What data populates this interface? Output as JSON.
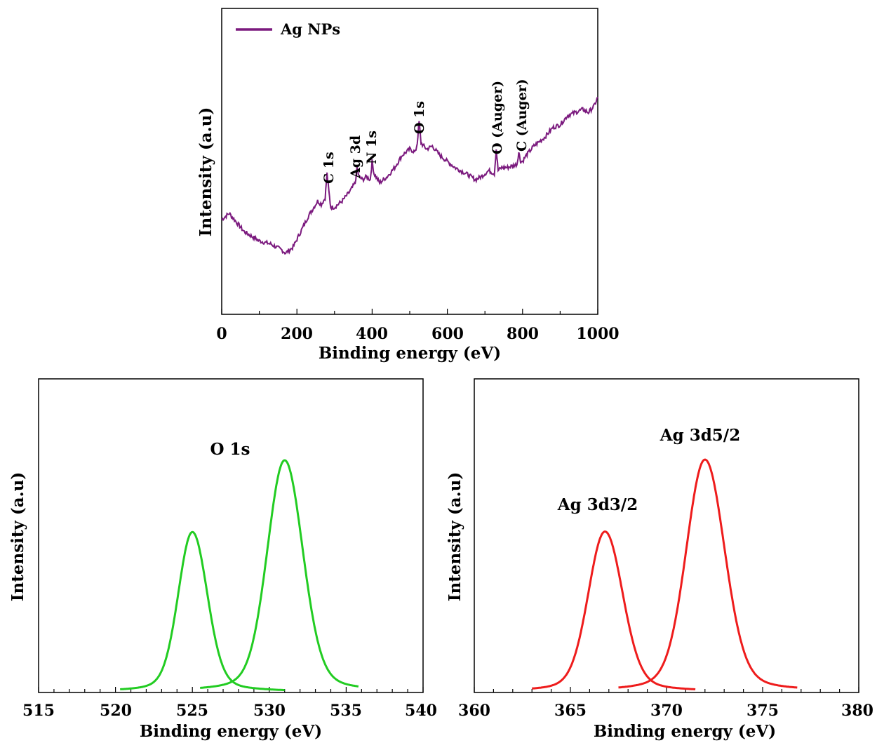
{
  "chart_data": [
    {
      "id": "survey",
      "type": "line",
      "xlabel": "Binding energy (eV)",
      "ylabel": "Intensity (a.u)",
      "xlim": [
        0,
        1000
      ],
      "ylim": [
        0,
        1
      ],
      "xticks": [
        "0",
        "200",
        "400",
        "600",
        "800",
        "1000"
      ],
      "legend": {
        "position": "top-left",
        "entries": [
          "Ag NPs"
        ]
      },
      "series": [
        {
          "name": "Ag NPs",
          "color": "#7b1a7e",
          "x": [
            0,
            20,
            40,
            60,
            100,
            130,
            160,
            170,
            190,
            210,
            230,
            245,
            255,
            265,
            275,
            280,
            285,
            290,
            300,
            320,
            340,
            355,
            360,
            365,
            375,
            385,
            395,
            400,
            405,
            420,
            440,
            460,
            480,
            500,
            515,
            520,
            525,
            530,
            545,
            560,
            580,
            600,
            620,
            650,
            675,
            690,
            710,
            725,
            730,
            735,
            745,
            760,
            785,
            790,
            795,
            800,
            810,
            830,
            860,
            880,
            900,
            920,
            940,
            960,
            975,
            990,
            1000
          ],
          "y": [
            0.31,
            0.33,
            0.3,
            0.27,
            0.24,
            0.23,
            0.21,
            0.2,
            0.22,
            0.27,
            0.32,
            0.35,
            0.37,
            0.36,
            0.38,
            0.46,
            0.4,
            0.35,
            0.35,
            0.37,
            0.4,
            0.43,
            0.48,
            0.45,
            0.44,
            0.45,
            0.44,
            0.5,
            0.46,
            0.43,
            0.45,
            0.48,
            0.52,
            0.54,
            0.53,
            0.56,
            0.63,
            0.56,
            0.54,
            0.55,
            0.52,
            0.5,
            0.48,
            0.46,
            0.44,
            0.45,
            0.47,
            0.46,
            0.54,
            0.47,
            0.48,
            0.48,
            0.49,
            0.53,
            0.5,
            0.5,
            0.52,
            0.55,
            0.58,
            0.61,
            0.62,
            0.65,
            0.66,
            0.67,
            0.66,
            0.68,
            0.71
          ]
        }
      ],
      "annotations": [
        {
          "text": "C 1s",
          "x": 285,
          "y": 0.46
        },
        {
          "text": "Ag 3d",
          "x": 360,
          "y": 0.48
        },
        {
          "text": "N 1s",
          "x": 400,
          "y": 0.5
        },
        {
          "text": "O 1s",
          "x": 525,
          "y": 0.63
        },
        {
          "text": "O (Auger)",
          "x": 730,
          "y": 0.54
        },
        {
          "text": "C (Auger)",
          "x": 795,
          "y": 0.53
        }
      ]
    },
    {
      "id": "o1s",
      "type": "line",
      "xlabel": "Binding energy (eV)",
      "ylabel": "Intensity (a.u)",
      "xlim": [
        515,
        540
      ],
      "ylim": [
        0,
        1
      ],
      "xticks": [
        "515",
        "520",
        "525",
        "530",
        "535",
        "540"
      ],
      "color": "#22cc22",
      "title": "O 1s",
      "peaks": [
        {
          "center": 525.0,
          "amplitude": 0.69,
          "sigma_left": 0.9,
          "sigma_right": 0.95,
          "range": [
            520.3,
            531.0
          ]
        },
        {
          "center": 531.0,
          "amplitude": 1.0,
          "sigma_left": 1.1,
          "sigma_right": 1.15,
          "range": [
            525.5,
            535.8
          ]
        }
      ]
    },
    {
      "id": "ag3d",
      "type": "line",
      "xlabel": "Binding energy (eV)",
      "ylabel": "Intensity (a.u)",
      "xlim": [
        360,
        380
      ],
      "ylim": [
        0,
        1
      ],
      "xticks": [
        "360",
        "365",
        "370",
        "375",
        "380"
      ],
      "color": "#ee1c1c",
      "peaks": [
        {
          "name": "Ag 3d3/2",
          "center": 366.8,
          "amplitude": 0.69,
          "sigma_left": 0.85,
          "sigma_right": 0.9,
          "range": [
            363.0,
            371.5
          ]
        },
        {
          "name": "Ag 3d5/2",
          "center": 372.0,
          "amplitude": 1.0,
          "sigma_left": 0.95,
          "sigma_right": 1.0,
          "range": [
            367.5,
            376.8
          ]
        }
      ]
    }
  ]
}
